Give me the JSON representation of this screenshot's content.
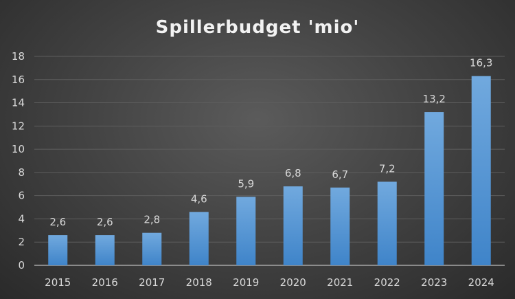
{
  "chart_data": {
    "type": "bar",
    "title": "Spillerbudget 'mio'",
    "xlabel": "",
    "ylabel": "",
    "categories": [
      "2015",
      "2016",
      "2017",
      "2018",
      "2019",
      "2020",
      "2021",
      "2022",
      "2023",
      "2024"
    ],
    "values": [
      2.6,
      2.6,
      2.8,
      4.6,
      5.9,
      6.8,
      6.7,
      7.2,
      13.2,
      16.3
    ],
    "data_labels": [
      "2,6",
      "2,6",
      "2,8",
      "4,6",
      "5,9",
      "6,8",
      "6,7",
      "7,2",
      "13,2",
      "16,3"
    ],
    "ylim": [
      0,
      18
    ],
    "yticks": [
      0,
      2,
      4,
      6,
      8,
      10,
      12,
      14,
      16,
      18
    ],
    "grid": true,
    "legend": "none",
    "colors": {
      "bar_top": "#71a9de",
      "bar_bottom": "#3f84c9",
      "text": "#d9d9d9",
      "grid": "#5e5e5e"
    }
  }
}
